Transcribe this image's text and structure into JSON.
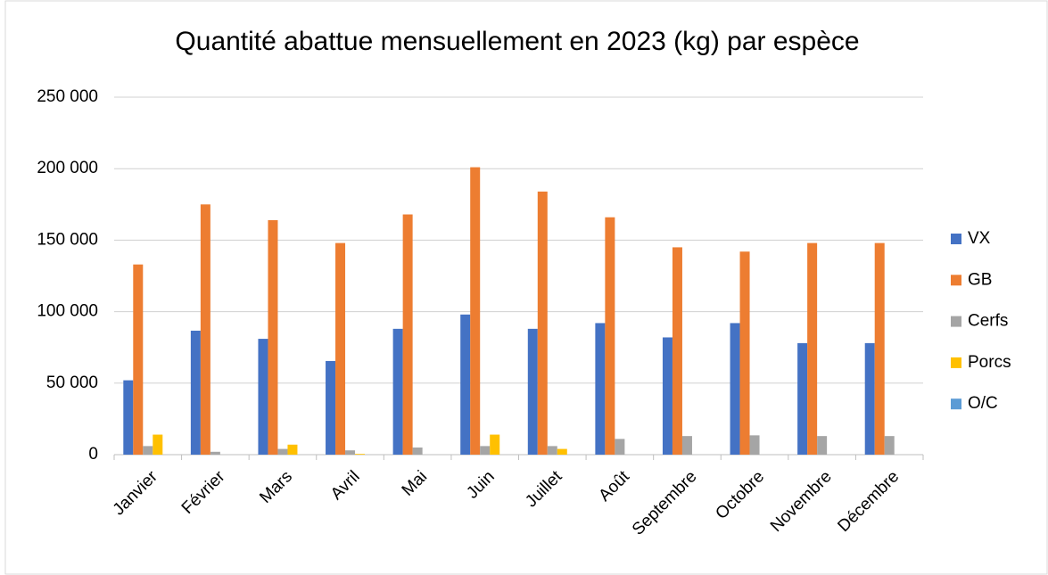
{
  "chart_data": {
    "type": "bar",
    "title": "Quantité abattue mensuellement en 2023 (kg) par espèce",
    "categories": [
      "Janvier",
      "Février",
      "Mars",
      "Avril",
      "Mai",
      "Juin",
      "Juillet",
      "Août",
      "Septembre",
      "Octobre",
      "Novembre",
      "Décembre"
    ],
    "series": [
      {
        "name": "VX",
        "color": "#4472c4",
        "values": [
          52000,
          86700,
          81000,
          65500,
          88000,
          98000,
          88000,
          92000,
          82000,
          92000,
          78000,
          78000
        ]
      },
      {
        "name": "GB",
        "color": "#ed7d31",
        "values": [
          133000,
          175000,
          164000,
          148000,
          168000,
          201000,
          184000,
          166000,
          145000,
          142000,
          148000,
          148000
        ]
      },
      {
        "name": "Cerfs",
        "color": "#a5a5a5",
        "values": [
          6000,
          2000,
          4000,
          3000,
          5000,
          6000,
          6000,
          11000,
          13000,
          13500,
          13000,
          13000
        ]
      },
      {
        "name": "Porcs",
        "color": "#ffc000",
        "values": [
          14000,
          0,
          7000,
          500,
          0,
          14000,
          4000,
          0,
          0,
          0,
          0,
          0
        ]
      },
      {
        "name": "O/C",
        "color": "#5b9bd5",
        "values": [
          0,
          0,
          0,
          0,
          0,
          0,
          0,
          0,
          0,
          0,
          0,
          0
        ]
      }
    ],
    "ylim": [
      0,
      250000
    ],
    "yticks": [
      0,
      {
        "value": 50000,
        "label": "50 000"
      },
      {
        "value": 100000,
        "label": "100 000"
      },
      {
        "value": 150000,
        "label": "150 000"
      },
      {
        "value": 200000,
        "label": "200 000"
      },
      {
        "value": 250000,
        "label": "250 000"
      }
    ],
    "grid": true,
    "legend": "right"
  }
}
